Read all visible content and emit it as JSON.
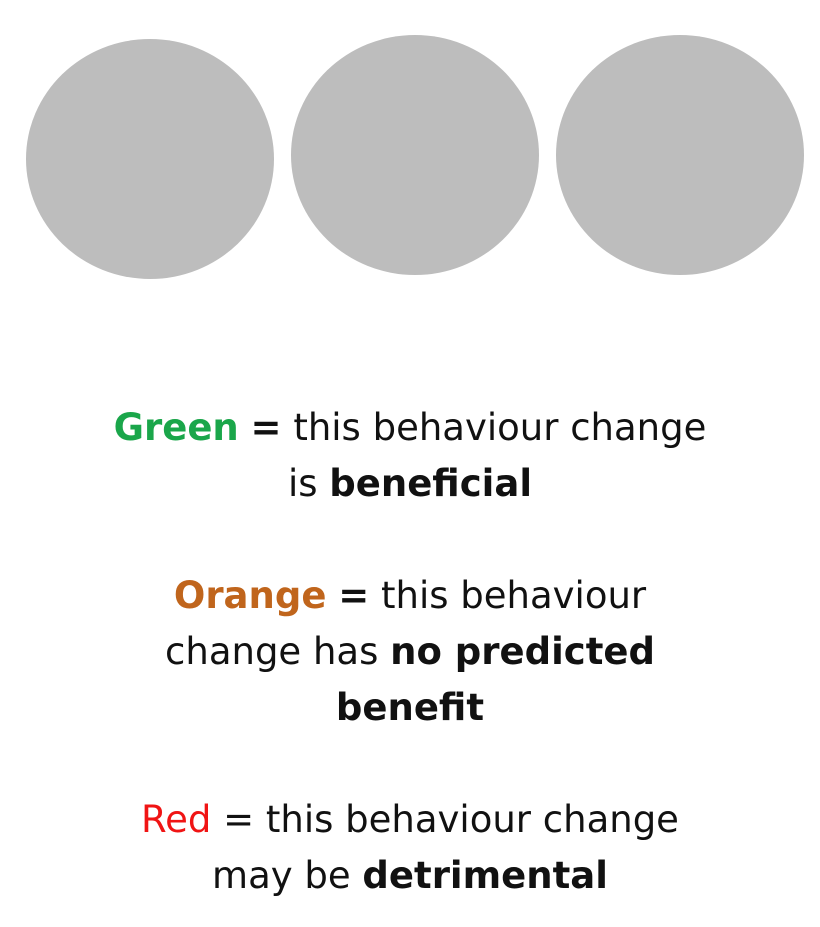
{
  "circles": [
    {
      "color": "#bdbdbd"
    },
    {
      "color": "#bdbdbd"
    },
    {
      "color": "#bdbdbd"
    }
  ],
  "legend": {
    "green": {
      "color_name": "Green",
      "color": "#1aa64a",
      "equals": "=",
      "text1": "this behaviour change",
      "text2": "is",
      "bold": "beneficial"
    },
    "orange": {
      "color_name": "Orange",
      "color": "#c0651c",
      "equals": "=",
      "text1": "this behaviour",
      "text2": "change has",
      "bold1": "no predicted",
      "bold2": "benefit"
    },
    "red": {
      "color_name": "Red",
      "color": "#f01414",
      "equals": "=",
      "text1": "this behaviour change",
      "text2": "may be",
      "bold": "detrimental"
    }
  }
}
